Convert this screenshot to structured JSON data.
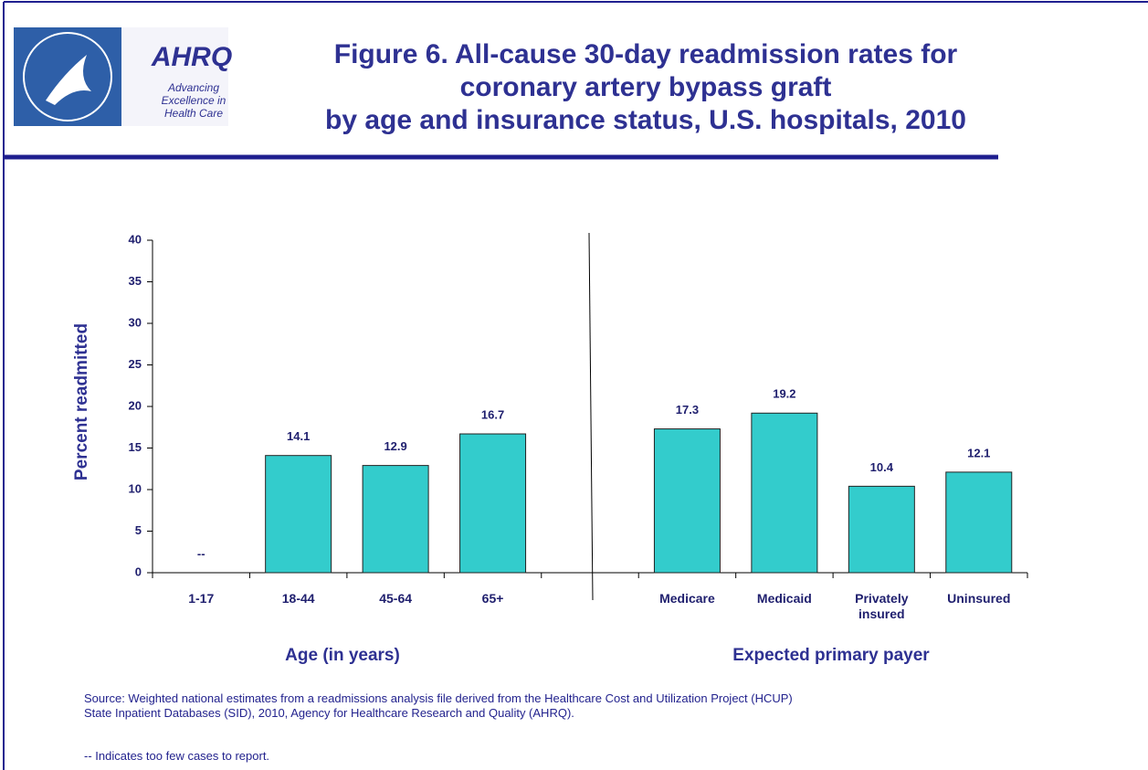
{
  "logo": {
    "name": "AHRQ",
    "lines": [
      "Advancing",
      "Excellence in",
      "Health Care"
    ]
  },
  "chart_data": {
    "type": "bar",
    "title": [
      "Figure 6. All-cause 30-day readmission rates for",
      "coronary artery bypass graft",
      "by age and insurance status, U.S. hospitals, 2010"
    ],
    "ylabel": "Percent readmitted",
    "categories": [
      "1-17",
      "18-44",
      "45-64",
      "65+",
      null,
      "Medicare",
      "Medicaid",
      "Privately insured",
      "Uninsured"
    ],
    "values": [
      null,
      14.1,
      12.9,
      16.7,
      null,
      17.3,
      19.2,
      10.4,
      12.1
    ],
    "value_labels": [
      "--",
      "14.1",
      "12.9",
      "16.7",
      null,
      "17.3",
      "19.2",
      "10.4",
      "12.1"
    ],
    "color": "#33cccc",
    "ylim": [
      0,
      40
    ],
    "yticks": [
      0,
      5,
      10,
      15,
      20,
      25,
      30,
      35,
      40
    ],
    "group_labels": [
      "Age (in years)",
      "Expected primary payer"
    ],
    "source": [
      "Source: Weighted national estimates from a readmissions analysis file derived from the Healthcare Cost and Utilization Project (HCUP)",
      "State Inpatient Databases (SID), 2010, Agency for Healthcare Research and Quality (AHRQ)."
    ],
    "note": "-- Indicates too few cases to report."
  }
}
